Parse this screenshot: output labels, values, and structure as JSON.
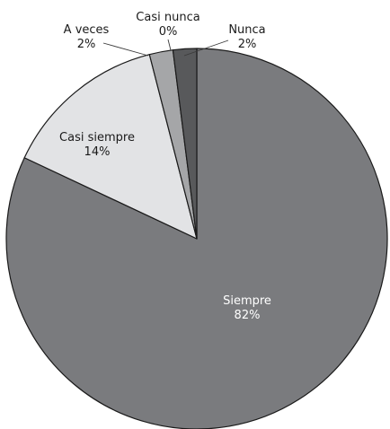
{
  "chart_data": {
    "type": "pie",
    "title": "",
    "start_angle_deg": 0,
    "direction": "clockwise",
    "slices": [
      {
        "label": "Siempre",
        "value_text": "82%",
        "value": 82,
        "color": "#7a7b7e",
        "label_color": "#ffffff"
      },
      {
        "label": "Casi siempre",
        "value_text": "14%",
        "value": 14,
        "color": "#e2e3e5",
        "label_color": "#1a1a1a"
      },
      {
        "label": "A veces",
        "value_text": "2%",
        "value": 2,
        "color": "#a5a6a8",
        "label_color": "#1a1a1a"
      },
      {
        "label": "Casi nunca",
        "value_text": "0%",
        "value": 0,
        "color": "#c9cacc",
        "label_color": "#1a1a1a"
      },
      {
        "label": "Nunca",
        "value_text": "2%",
        "value": 2,
        "color": "#58595b",
        "label_color": "#1a1a1a"
      }
    ],
    "outline_color": "#1a1a1a",
    "leader_line_color": "#3a3a3a"
  }
}
